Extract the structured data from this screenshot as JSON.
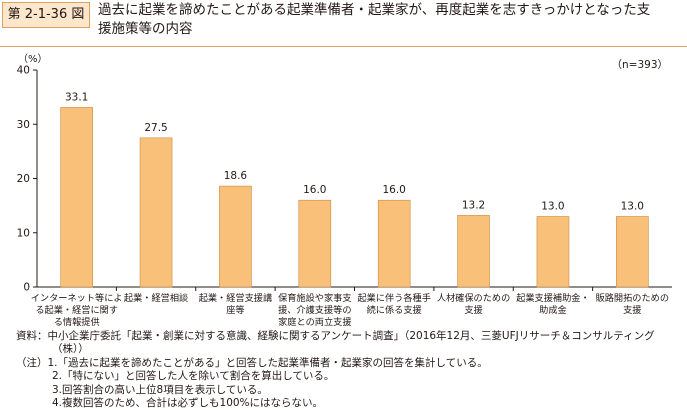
{
  "figure": {
    "number": "第 2-1-36 図",
    "title_line1": "過去に起業を諦めたことがある起業準備者・起業家が、再度起業を志すきっかけとなった支",
    "title_line2": "援施策等の内容"
  },
  "chart_data": {
    "type": "bar",
    "ylabel": "（%）",
    "sample_note": "（n=393）",
    "ylim": [
      0,
      40
    ],
    "yticks": [
      "0",
      "10",
      "20",
      "30",
      "40"
    ],
    "bar_color": "#f9c07a",
    "categories": [
      [
        "インターネット等によ",
        "る起業・経営に関す",
        "る情報提供"
      ],
      [
        "起業・経営相談"
      ],
      [
        "起業・経営支援講",
        "座等"
      ],
      [
        "保育施設や家事支",
        "援、介護支援等の",
        "家庭との両立支援"
      ],
      [
        "起業に伴う各種手",
        "続に係る支援"
      ],
      [
        "人材確保のための",
        "支援"
      ],
      [
        "起業支援補助金・",
        "助成金"
      ],
      [
        "販路開拓のための",
        "支援"
      ]
    ],
    "values": [
      33.1,
      27.5,
      18.6,
      16.0,
      16.0,
      13.2,
      13.0,
      13.0
    ],
    "value_labels": [
      "33.1",
      "27.5",
      "18.6",
      "16.0",
      "16.0",
      "13.2",
      "13.0",
      "13.0"
    ]
  },
  "notes": {
    "source": "資料：中小企業庁委託「起業・創業に対する意識、経験に関するアンケート調査」（2016年12月、三菱UFJリサーチ＆コンサルティング",
    "source_cont": "（株））",
    "note1": "（注）1.「過去に起業を諦めたことがある」と回答した起業準備者・起業家の回答を集計している。",
    "note2": "2.「特にない」と回答した人を除いて割合を算出している。",
    "note3": "3.回答割合の高い上位8項目を表示している。",
    "note4": "4.複数回答のため、合計は必ずしも100%にはならない。"
  }
}
